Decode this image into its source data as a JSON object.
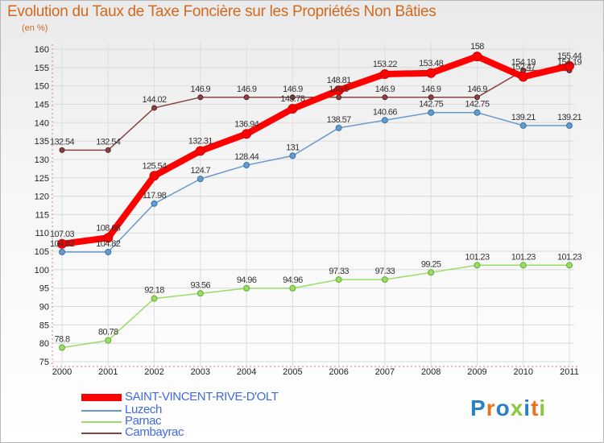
{
  "title": "Evolution du Taux de Taxe Foncière sur les Propriétés Non Bâties",
  "unit_label": "(en %)",
  "logo": {
    "letters": [
      "P",
      "r",
      "o",
      "x",
      "i",
      "t",
      "i"
    ],
    "colors": [
      "#2c7fc4",
      "#e8741e",
      "#2c7fc4",
      "#8dc63f",
      "#2c7fc4",
      "#e8741e",
      "#8dc63f"
    ]
  },
  "chart_data": {
    "type": "line",
    "title": "Evolution du Taux de Taxe Foncière sur les Propriétés Non Bâties",
    "ylabel": "(en %)",
    "xlabel": "",
    "ylim": [
      75,
      160
    ],
    "yticks": [
      75,
      80,
      85,
      90,
      95,
      100,
      105,
      110,
      115,
      120,
      125,
      130,
      135,
      140,
      145,
      150,
      155,
      160
    ],
    "grid": true,
    "legend_position": "bottom-left",
    "x": [
      "2000",
      "2001",
      "2002",
      "2003",
      "2004",
      "2005",
      "2006",
      "2007",
      "2008",
      "2009",
      "2010",
      "2011"
    ],
    "series": [
      {
        "name": "SAINT-VINCENT-RIVE-D'OLT",
        "color": "#ff0000",
        "values": [
          107.03,
          108.68,
          125.54,
          132.31,
          136.94,
          143.78,
          148.81,
          153.22,
          153.48,
          158,
          152.47,
          155.44
        ],
        "labels": [
          "107.03",
          "108.68",
          "125.54",
          "132.31",
          "136.94",
          "143.78",
          "148.81",
          "153.22",
          "153.48",
          "158",
          "152.47",
          "155.44"
        ]
      },
      {
        "name": "Luzech",
        "color": "#6699cc",
        "values": [
          104.82,
          104.82,
          117.98,
          124.7,
          128.44,
          131,
          138.57,
          140.66,
          142.75,
          142.75,
          139.21,
          139.21
        ],
        "labels": [
          "104.82",
          "104.82",
          "117.98",
          "124.7",
          "128.44",
          "131",
          "138.57",
          "140.66",
          "142.75",
          "142.75",
          "139.21",
          "139.21"
        ]
      },
      {
        "name": "Parnac",
        "color": "#99dd66",
        "values": [
          78.8,
          80.78,
          92.18,
          93.56,
          94.96,
          94.96,
          97.33,
          97.33,
          99.25,
          101.23,
          101.23,
          101.23
        ],
        "labels": [
          "78.8",
          "80.78",
          "92.18",
          "93.56",
          "94.96",
          "94.96",
          "97.33",
          "97.33",
          "99.25",
          "101.23",
          "101.23",
          "101.23"
        ]
      },
      {
        "name": "Cambayrac",
        "color": "#884444",
        "values": [
          132.54,
          132.54,
          144.02,
          146.9,
          146.9,
          146.9,
          146.9,
          146.9,
          146.9,
          146.9,
          154.19,
          154.19
        ],
        "labels": [
          "132.54",
          "132.54",
          "144.02",
          "146.9",
          "146.9",
          "146.9",
          "146.9",
          "146.9",
          "146.9",
          "146.9",
          "154.19",
          "154.19"
        ]
      }
    ]
  }
}
